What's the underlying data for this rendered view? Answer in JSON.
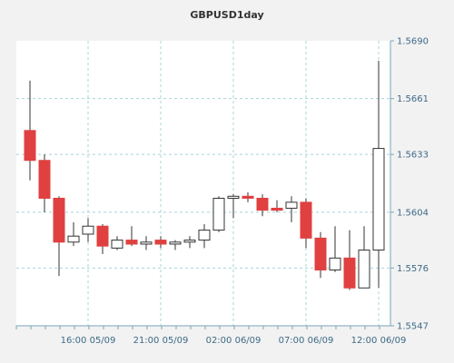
{
  "chart_data": {
    "type": "candlestick",
    "title": "GBPUSD1day",
    "x_tick_labels": [
      "16:00 05/09",
      "21:00 05/09",
      "02:00 06/09",
      "07:00 06/09",
      "12:00 06/09"
    ],
    "y_tick_labels": [
      "1.5690",
      "1.5661",
      "1.5633",
      "1.5604",
      "1.5576",
      "1.5547"
    ],
    "ylim": [
      1.5547,
      1.569
    ],
    "grid": true,
    "colors": {
      "up_fill": "#ffffff",
      "down_fill": "#e04040",
      "candle_stroke": "#333333",
      "grid": "#a8d4d8",
      "axis": "#7aa6b8",
      "tick_label": "#3d6a86",
      "plot_bg": "#ffffff",
      "page_bg": "#f2f2f2"
    },
    "candles": [
      {
        "open": 1.5645,
        "high": 1.567,
        "low": 1.562,
        "close": 1.563
      },
      {
        "open": 1.563,
        "high": 1.5633,
        "low": 1.5604,
        "close": 1.5611
      },
      {
        "open": 1.5611,
        "high": 1.5612,
        "low": 1.5572,
        "close": 1.5589
      },
      {
        "open": 1.5589,
        "high": 1.5599,
        "low": 1.5587,
        "close": 1.5592
      },
      {
        "open": 1.5593,
        "high": 1.5601,
        "low": 1.5589,
        "close": 1.5597
      },
      {
        "open": 1.5597,
        "high": 1.5598,
        "low": 1.5583,
        "close": 1.5587
      },
      {
        "open": 1.5586,
        "high": 1.5592,
        "low": 1.5585,
        "close": 1.559
      },
      {
        "open": 1.559,
        "high": 1.5597,
        "low": 1.5587,
        "close": 1.5588
      },
      {
        "open": 1.5588,
        "high": 1.5592,
        "low": 1.5585,
        "close": 1.5589
      },
      {
        "open": 1.559,
        "high": 1.5592,
        "low": 1.5586,
        "close": 1.5588
      },
      {
        "open": 1.5588,
        "high": 1.559,
        "low": 1.5585,
        "close": 1.5589
      },
      {
        "open": 1.5589,
        "high": 1.5592,
        "low": 1.5586,
        "close": 1.559
      },
      {
        "open": 1.559,
        "high": 1.5598,
        "low": 1.5586,
        "close": 1.5595
      },
      {
        "open": 1.5595,
        "high": 1.5612,
        "low": 1.5594,
        "close": 1.5611
      },
      {
        "open": 1.5611,
        "high": 1.5613,
        "low": 1.5601,
        "close": 1.5612
      },
      {
        "open": 1.5612,
        "high": 1.5614,
        "low": 1.5609,
        "close": 1.5611
      },
      {
        "open": 1.5611,
        "high": 1.5613,
        "low": 1.5602,
        "close": 1.5605
      },
      {
        "open": 1.5606,
        "high": 1.561,
        "low": 1.5604,
        "close": 1.5605
      },
      {
        "open": 1.5606,
        "high": 1.5612,
        "low": 1.5599,
        "close": 1.5609
      },
      {
        "open": 1.5609,
        "high": 1.5611,
        "low": 1.5586,
        "close": 1.5591
      },
      {
        "open": 1.5591,
        "high": 1.5594,
        "low": 1.5571,
        "close": 1.5575
      },
      {
        "open": 1.5575,
        "high": 1.5597,
        "low": 1.5574,
        "close": 1.5581
      },
      {
        "open": 1.5581,
        "high": 1.5595,
        "low": 1.5565,
        "close": 1.5566
      },
      {
        "open": 1.5566,
        "high": 1.5597,
        "low": 1.5566,
        "close": 1.5585
      },
      {
        "open": 1.5585,
        "high": 1.568,
        "low": 1.5566,
        "close": 1.5636
      }
    ]
  }
}
